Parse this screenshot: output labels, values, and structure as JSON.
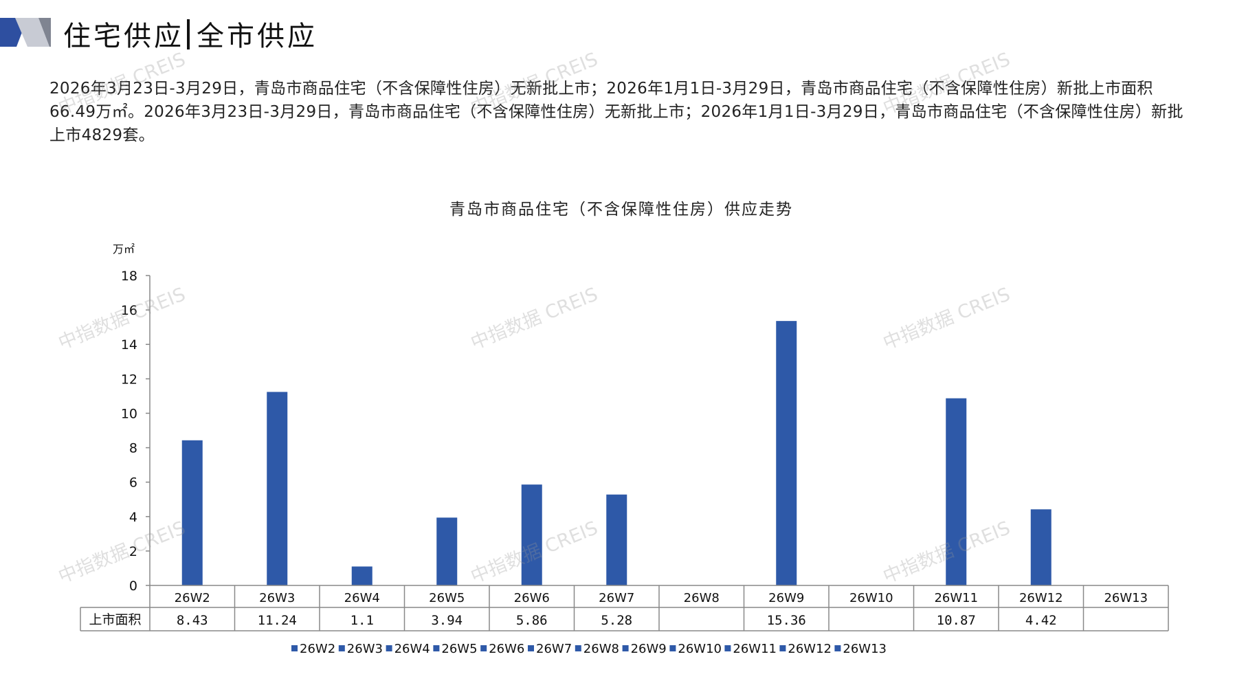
{
  "header": {
    "title_left": "住宅供应",
    "title_right": "全市供应"
  },
  "summary": {
    "text": "2026年3月23日-3月29日，青岛市商品住宅（不含保障性住房）无新批上市；2026年1月1日-3月29日，青岛市商品住宅（不含保障性住房）新批上市面积66.49万㎡。2026年3月23日-3月29日，青岛市商品住宅（不含保障性住房）无新批上市；2026年1月1日-3月29日，青岛市商品住宅（不含保障性住房）新批上市4829套。"
  },
  "watermark": {
    "text": "中指数据 CREIS"
  },
  "colors": {
    "bar": "#2E59A8",
    "axis": "#888888",
    "logo_blue": "#2E4FA0",
    "logo_grey": "#C8CBD4"
  },
  "chart_data": {
    "type": "bar",
    "title": "青岛市商品住宅（不含保障性住房）供应走势",
    "y_unit": "万㎡",
    "ylim": [
      0,
      18
    ],
    "yticks": [
      0,
      2,
      4,
      6,
      8,
      10,
      12,
      14,
      16,
      18
    ],
    "categories": [
      "26W2",
      "26W3",
      "26W4",
      "26W5",
      "26W6",
      "26W7",
      "26W8",
      "26W9",
      "26W10",
      "26W11",
      "26W12",
      "26W13"
    ],
    "series": [
      {
        "name": "上市面积",
        "values": [
          8.43,
          11.24,
          1.1,
          3.94,
          5.86,
          5.28,
          null,
          15.36,
          null,
          10.87,
          4.42,
          null
        ],
        "display_values": [
          "8.43",
          "11.24",
          "1.1",
          "3.94",
          "5.86",
          "5.28",
          "",
          "15.36",
          "",
          "10.87",
          "4.42",
          ""
        ]
      }
    ],
    "legend": [
      "26W2",
      "26W3",
      "26W4",
      "26W5",
      "26W6",
      "26W7",
      "26W8",
      "26W9",
      "26W10",
      "26W11",
      "26W12",
      "26W13"
    ],
    "legend_position": "bottom",
    "grid": false,
    "data_table": true
  }
}
